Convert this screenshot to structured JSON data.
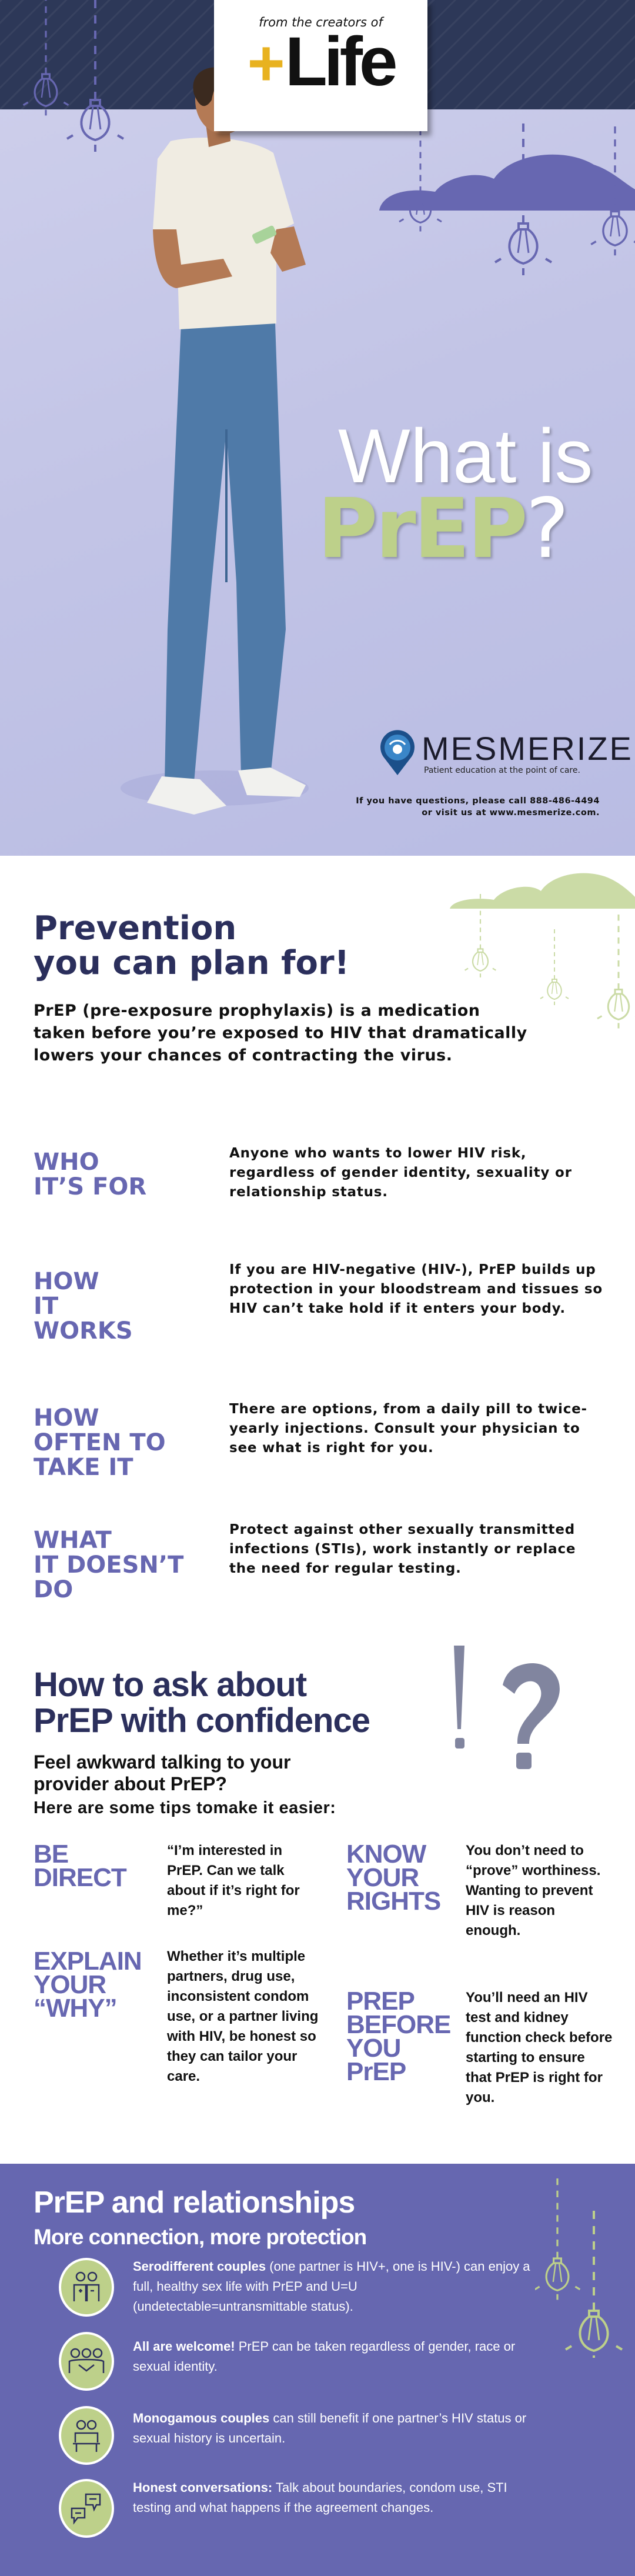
{
  "colors": {
    "navy": "#2b2f5c",
    "purple": "#6767b1",
    "green": "#bdd08a",
    "lavender": "#c2c4e6",
    "gold": "#e8b220"
  },
  "hero": {
    "logo": {
      "from_text": "from the creators of",
      "plus": "+",
      "brand": "Life"
    },
    "title_line1": "What is",
    "title_line2": "PrEP",
    "title_mark": "?",
    "mesmerize": {
      "name": "MESMERIZE",
      "tagline": "Patient education at the point of care."
    },
    "contact": {
      "line1_prefix": "If you have questions, please call ",
      "phone": "888-486-4494",
      "line2_prefix": "or visit us at ",
      "website": "www.mesmerize.com",
      "line2_suffix": "."
    }
  },
  "prevention": {
    "heading_line1": "Prevention",
    "heading_line2": "you can plan for!",
    "intro": "PrEP (pre-exposure prophylaxis) is a medication taken before you’re exposed to HIV that dramatically lowers your chances of contracting the virus.",
    "rows": [
      {
        "label": [
          "WHO",
          "IT’S FOR"
        ],
        "text": "Anyone who wants to lower HIV risk, regardless of gender identity, sexuality or relationship status."
      },
      {
        "label": [
          "HOW",
          "IT",
          "WORKS"
        ],
        "text": "If you are HIV-negative (HIV-), PrEP builds up protection in your bloodstream and tissues so HIV can’t take hold if it enters your body."
      },
      {
        "label": [
          "HOW",
          "OFTEN TO",
          "TAKE IT"
        ],
        "text": "There are options, from a daily pill to twice-yearly injections. Consult your physician to see what is right for you."
      },
      {
        "label": [
          "WHAT",
          "IT DOESN’T",
          "DO"
        ],
        "text": "Protect against other sexually transmitted infections (STIs), work instantly or replace the need for regular testing."
      }
    ]
  },
  "confidence": {
    "heading_line1": "How to ask about",
    "heading_line2": "PrEP with confidence",
    "sub_line1": "Feel awkward talking to your",
    "sub_line2": "provider about PrEP?",
    "tips_intro": "Here are some tips tomake it easier:",
    "tips": [
      {
        "label": [
          "BE",
          "DIRECT"
        ],
        "text": "“I’m interested in PrEP. Can we talk about if it’s right for me?”"
      },
      {
        "label": [
          "EXPLAIN",
          "YOUR",
          "“WHY”"
        ],
        "text": "Whether it’s multiple partners, drug use, inconsistent condom use, or a partner living with HIV, be honest so they can tailor your care."
      },
      {
        "label": [
          "KNOW",
          "YOUR",
          "RIGHTS"
        ],
        "text": "You don’t need to “prove” worthiness. Wanting to prevent HIV is reason enough."
      },
      {
        "label": [
          "PREP",
          "BEFORE",
          "YOU",
          "PrEP"
        ],
        "text": "You’ll need an HIV test and kidney function check before starting to ensure that PrEP is right for you."
      }
    ]
  },
  "relationships": {
    "heading": "PrEP and relationships",
    "subheading": "More connection, more protection",
    "items": [
      {
        "icon": "serodifferent-couple-icon",
        "bold": "Serodifferent couples",
        "text": " (one partner is HIV+, one is HIV-) can enjoy a full, healthy sex life with PrEP and U=U (undetectable=untransmittable status)."
      },
      {
        "icon": "group-icon",
        "bold": "All are welcome!",
        "text": " PrEP can be taken regardless of gender, race or sexual identity."
      },
      {
        "icon": "couple-on-bench-icon",
        "bold": "Monogamous couples",
        "text": " can still benefit if one partner’s HIV status or sexual history is uncertain."
      },
      {
        "icon": "chat-bubbles-icon",
        "bold": "Honest conversations:",
        "text": " Talk about boundaries, condom use, STI testing and what happens if the agreement changes."
      }
    ]
  }
}
